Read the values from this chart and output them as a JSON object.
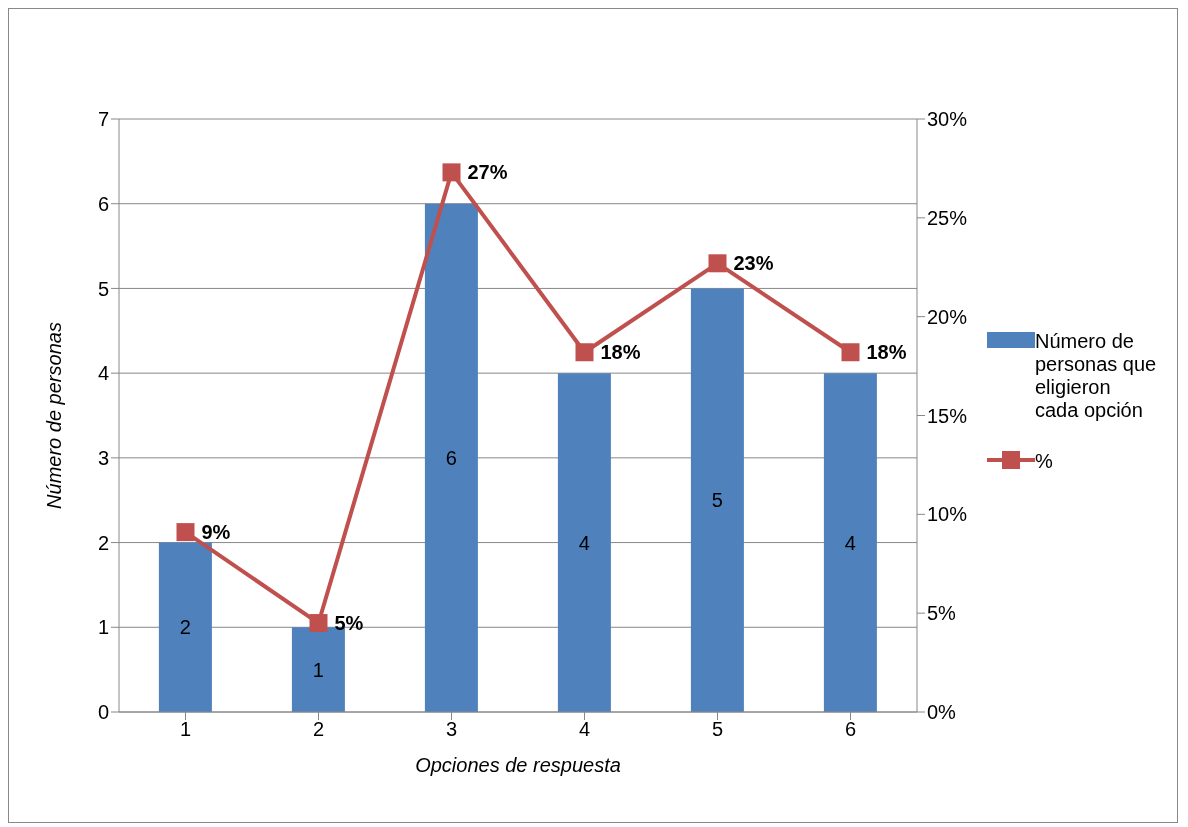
{
  "chart_data": {
    "type": "bar",
    "xlabel": "Opciones de respuesta",
    "ylabel": "Número de personas",
    "categories": [
      "1",
      "2",
      "3",
      "4",
      "5",
      "6"
    ],
    "series": [
      {
        "name": "Número de personas que eligieron cada opción",
        "color": "#4f81bd",
        "values": [
          2,
          1,
          6,
          4,
          5,
          4
        ],
        "data_labels": true
      },
      {
        "name": "%",
        "type": "line",
        "axis": "y2",
        "color": "#c0504d",
        "marker": "square",
        "line_style": "solid",
        "values": [
          9.1,
          4.5,
          27.3,
          18.2,
          22.7,
          18.2
        ],
        "value_labels": [
          "9%",
          "5%",
          "27%",
          "18%",
          "23%",
          "18%"
        ]
      }
    ],
    "ylim": [
      0,
      7
    ],
    "yticks": [
      0,
      1,
      2,
      3,
      4,
      5,
      6,
      7
    ],
    "y2lim": [
      0,
      30
    ],
    "y2ticks": [
      {
        "value": 0,
        "label": "0%"
      },
      {
        "value": 5,
        "label": "5%"
      },
      {
        "value": 10,
        "label": "10%"
      },
      {
        "value": 15,
        "label": "15%"
      },
      {
        "value": 20,
        "label": "20%"
      },
      {
        "value": 25,
        "label": "25%"
      },
      {
        "value": 30,
        "label": "30%"
      }
    ],
    "grid": "y",
    "legend": "right"
  }
}
